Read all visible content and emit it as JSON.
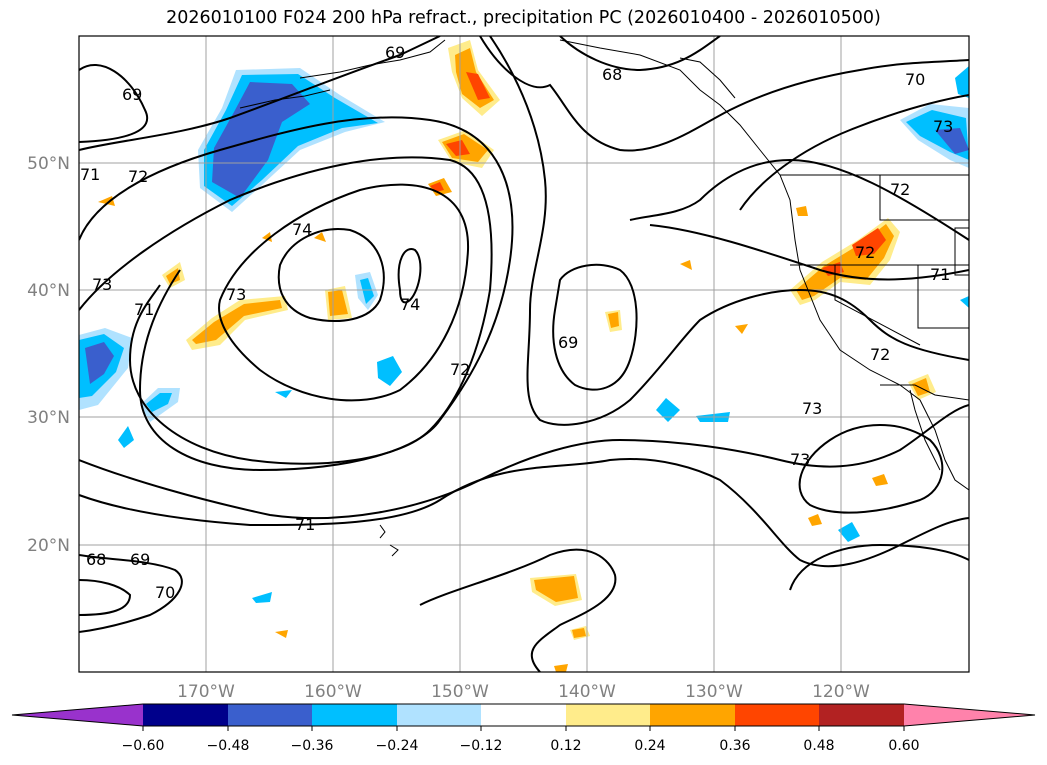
{
  "title": "2026010100 F024 200 hPa refract., precipitation PC (2026010400 - 2026010500)",
  "axes": {
    "lon_labels": [
      "170°W",
      "160°W",
      "150°W",
      "140°W",
      "130°W",
      "120°W"
    ],
    "lat_labels": [
      "50°N",
      "40°N",
      "30°N",
      "20°N"
    ]
  },
  "contour_labels": [
    "69",
    "69",
    "68",
    "70",
    "73",
    "71",
    "72",
    "73",
    "71",
    "74",
    "73",
    "74",
    "72",
    "69",
    "72",
    "72",
    "73",
    "73",
    "71",
    "68",
    "69",
    "70",
    "72",
    "71"
  ],
  "colorbar": {
    "ticks": [
      "−0.60",
      "−0.48",
      "−0.36",
      "−0.24",
      "−0.12",
      "0.12",
      "0.24",
      "0.36",
      "0.48",
      "0.60"
    ],
    "colors": [
      "#9932cc",
      "#00008b",
      "#3a5fcd",
      "#00bfff",
      "#b0e2ff",
      "#ffffff",
      "#ffec8b",
      "#ffa500",
      "#ff4500",
      "#b22222",
      "#ff82ab"
    ]
  }
}
